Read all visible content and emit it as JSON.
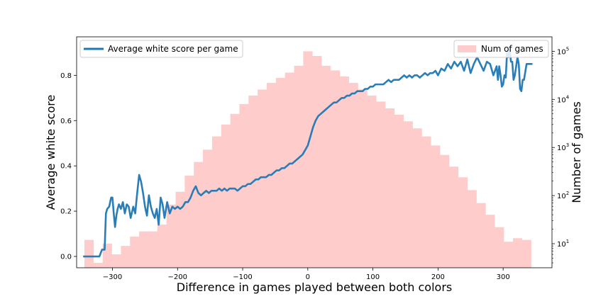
{
  "chart_data": {
    "type": "bar+line",
    "xlabel": "Difference in games played between both colors",
    "ylabel_left": "Average white score",
    "ylabel_right": "Number of games",
    "xlim": [
      -355,
      375
    ],
    "ylim_left": [
      -0.05,
      0.97
    ],
    "ylim_right_log10": [
      0.5,
      5.3
    ],
    "y_right_scale": "log",
    "x_ticks": [
      -300,
      -200,
      -100,
      0,
      100,
      200,
      300
    ],
    "x_tick_labels": [
      "−300",
      "−200",
      "−100",
      "0",
      "100",
      "200",
      "300"
    ],
    "y_left_ticks": [
      0.0,
      0.2,
      0.4,
      0.6,
      0.8
    ],
    "y_left_tick_labels": [
      "0.0",
      "0.2",
      "0.4",
      "0.6",
      "0.8"
    ],
    "y_right_ticks_exp": [
      1,
      2,
      3,
      4,
      5
    ],
    "legend": {
      "line_label": "Average white score per game",
      "line_position": "upper-left",
      "bar_label": "Num of games",
      "bar_position": "upper-right"
    },
    "colors": {
      "line": "#1f77b4",
      "bars": "#ffcccc"
    },
    "histogram": {
      "bin_width": 14,
      "bin_centers": [
        -336,
        -322,
        -308,
        -294,
        -280,
        -266,
        -252,
        -238,
        -224,
        -210,
        -196,
        -182,
        -168,
        -154,
        -140,
        -126,
        -112,
        -98,
        -84,
        -70,
        -56,
        -42,
        -28,
        -14,
        0,
        14,
        28,
        42,
        56,
        70,
        84,
        98,
        112,
        126,
        140,
        154,
        168,
        182,
        196,
        210,
        224,
        238,
        252,
        266,
        280,
        294,
        308,
        322,
        336
      ],
      "counts": [
        12,
        4,
        10,
        6,
        9,
        14,
        18,
        18,
        25,
        65,
        120,
        260,
        500,
        900,
        1700,
        3000,
        5000,
        8000,
        12000,
        16000,
        22000,
        28000,
        36000,
        50000,
        100000,
        80000,
        50000,
        40000,
        30000,
        22000,
        16000,
        12000,
        9000,
        6500,
        4800,
        3500,
        2500,
        1700,
        1100,
        700,
        400,
        240,
        130,
        70,
        40,
        22,
        11,
        13,
        12
      ]
    },
    "series": [
      {
        "name": "Average white score per game",
        "x": [
          -345,
          -340,
          -330,
          -320,
          -316,
          -312,
          -310,
          -308,
          -305,
          -302,
          -300,
          -298,
          -296,
          -294,
          -292,
          -290,
          -287,
          -284,
          -281,
          -278,
          -275,
          -272,
          -268,
          -265,
          -262,
          -259,
          -256,
          -253,
          -250,
          -247,
          -244,
          -241,
          -238,
          -235,
          -232,
          -229,
          -226,
          -223,
          -220,
          -216,
          -212,
          -208,
          -204,
          -200,
          -196,
          -192,
          -188,
          -184,
          -180,
          -176,
          -172,
          -168,
          -164,
          -160,
          -156,
          -152,
          -148,
          -144,
          -140,
          -136,
          -132,
          -128,
          -124,
          -120,
          -116,
          -112,
          -108,
          -104,
          -100,
          -96,
          -92,
          -88,
          -84,
          -80,
          -76,
          -72,
          -68,
          -64,
          -60,
          -56,
          -52,
          -48,
          -44,
          -40,
          -36,
          -32,
          -28,
          -24,
          -20,
          -16,
          -12,
          -8,
          -4,
          0,
          4,
          8,
          12,
          16,
          20,
          24,
          28,
          32,
          36,
          40,
          44,
          48,
          52,
          56,
          60,
          64,
          68,
          72,
          76,
          80,
          84,
          88,
          92,
          96,
          100,
          104,
          108,
          112,
          116,
          120,
          124,
          128,
          132,
          136,
          140,
          144,
          148,
          152,
          156,
          160,
          164,
          168,
          172,
          176,
          180,
          184,
          188,
          192,
          196,
          200,
          205,
          210,
          215,
          220,
          225,
          230,
          235,
          240,
          245,
          250,
          255,
          260,
          265,
          270,
          275,
          280,
          285,
          290,
          292,
          294,
          296,
          298,
          300,
          302,
          304,
          306,
          308,
          310,
          312,
          314,
          316,
          318,
          320,
          322,
          324,
          326,
          328,
          330,
          332,
          336,
          340,
          345
        ],
        "y": [
          0.0,
          0.0,
          0.0,
          0.0,
          0.03,
          0.03,
          0.19,
          0.21,
          0.22,
          0.26,
          0.26,
          0.19,
          0.13,
          0.18,
          0.21,
          0.23,
          0.21,
          0.24,
          0.19,
          0.23,
          0.22,
          0.17,
          0.22,
          0.19,
          0.28,
          0.36,
          0.33,
          0.28,
          0.22,
          0.18,
          0.27,
          0.22,
          0.19,
          0.17,
          0.21,
          0.14,
          0.26,
          0.23,
          0.17,
          0.24,
          0.19,
          0.22,
          0.21,
          0.22,
          0.21,
          0.22,
          0.24,
          0.24,
          0.26,
          0.29,
          0.31,
          0.28,
          0.27,
          0.28,
          0.29,
          0.28,
          0.29,
          0.29,
          0.29,
          0.3,
          0.29,
          0.3,
          0.29,
          0.3,
          0.3,
          0.3,
          0.29,
          0.3,
          0.31,
          0.31,
          0.32,
          0.32,
          0.33,
          0.34,
          0.34,
          0.35,
          0.35,
          0.35,
          0.36,
          0.36,
          0.37,
          0.38,
          0.38,
          0.39,
          0.39,
          0.4,
          0.41,
          0.41,
          0.42,
          0.43,
          0.44,
          0.45,
          0.47,
          0.49,
          0.53,
          0.57,
          0.6,
          0.62,
          0.63,
          0.64,
          0.65,
          0.66,
          0.67,
          0.68,
          0.68,
          0.69,
          0.7,
          0.7,
          0.71,
          0.71,
          0.72,
          0.72,
          0.73,
          0.73,
          0.73,
          0.74,
          0.74,
          0.75,
          0.75,
          0.76,
          0.76,
          0.76,
          0.76,
          0.77,
          0.78,
          0.77,
          0.78,
          0.78,
          0.78,
          0.79,
          0.8,
          0.79,
          0.8,
          0.79,
          0.8,
          0.8,
          0.79,
          0.8,
          0.81,
          0.8,
          0.81,
          0.81,
          0.82,
          0.8,
          0.83,
          0.82,
          0.85,
          0.83,
          0.86,
          0.84,
          0.86,
          0.82,
          0.87,
          0.81,
          0.85,
          0.88,
          0.85,
          0.82,
          0.86,
          0.85,
          0.8,
          0.84,
          0.78,
          0.84,
          0.8,
          0.75,
          0.76,
          0.8,
          0.79,
          0.9,
          0.88,
          0.92,
          0.86,
          0.86,
          0.78,
          0.8,
          0.84,
          0.88,
          0.85,
          0.74,
          0.73,
          0.78,
          0.78,
          0.85,
          0.85,
          0.85
        ]
      }
    ]
  }
}
